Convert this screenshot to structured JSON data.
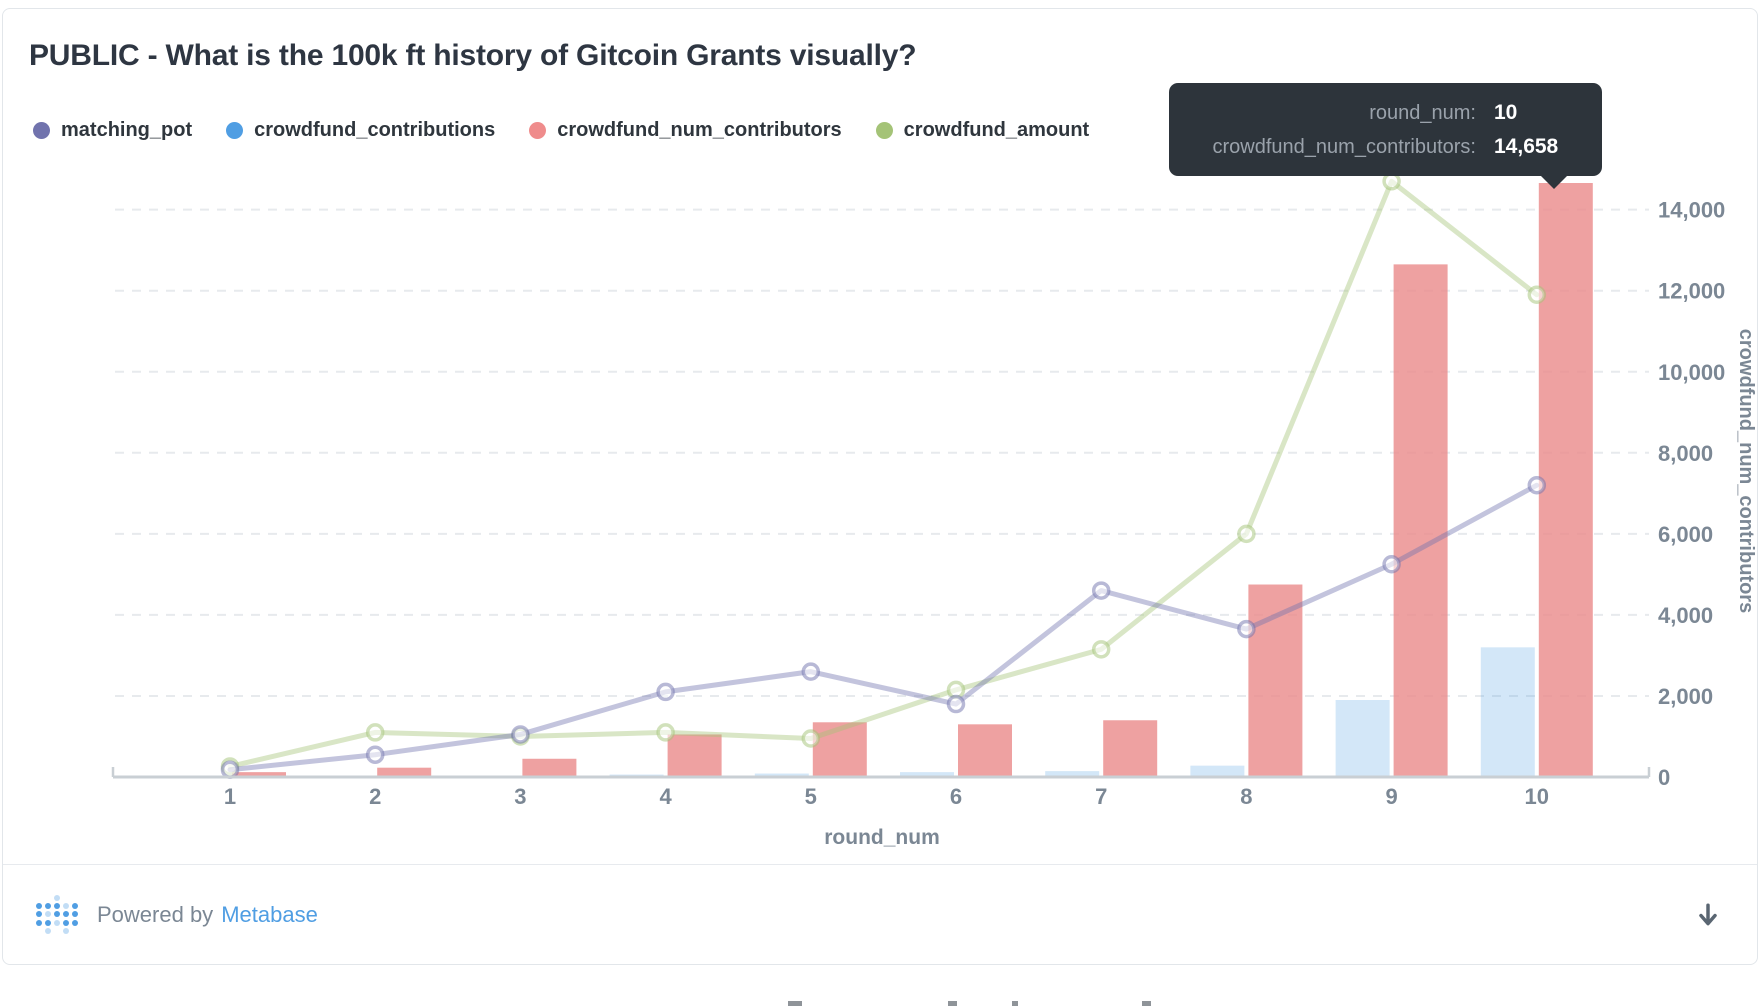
{
  "card": {
    "title": "PUBLIC - What is the 100k ft history of Gitcoin Grants visually?"
  },
  "legend": [
    {
      "label": "matching_pot",
      "color": "#7173ad"
    },
    {
      "label": "crowdfund_contributions",
      "color": "#509ee3"
    },
    {
      "label": "crowdfund_num_contributors",
      "color": "#ef8c8c"
    },
    {
      "label": "crowdfund_amount",
      "color": "#a4c377"
    }
  ],
  "tooltip": {
    "rows": [
      {
        "label": "round_num:",
        "value": "10"
      },
      {
        "label": "crowdfund_num_contributors:",
        "value": "14,658"
      }
    ]
  },
  "chart_data": {
    "type": "combo",
    "x": [
      1,
      2,
      3,
      4,
      5,
      6,
      7,
      8,
      9,
      10
    ],
    "xlabel": "round_num",
    "ylabel": "crowdfund_num_contributors",
    "ylim": [
      0,
      14800
    ],
    "y_ticks": [
      0,
      2000,
      4000,
      6000,
      8000,
      10000,
      12000,
      14000
    ],
    "grid": "dashed-horizontal",
    "legend_position": "top",
    "series": [
      {
        "name": "matching_pot",
        "type": "line",
        "color": "#7173ad",
        "values": [
          180,
          550,
          1050,
          2100,
          2600,
          1800,
          4600,
          3650,
          5250,
          7200
        ]
      },
      {
        "name": "crowdfund_contributions",
        "type": "bar",
        "color": "#509ee3",
        "values": [
          10,
          20,
          35,
          60,
          85,
          120,
          145,
          280,
          1900,
          3200
        ]
      },
      {
        "name": "crowdfund_num_contributors",
        "type": "bar",
        "color": "#ea8c8c",
        "values": [
          120,
          230,
          450,
          1050,
          1350,
          1300,
          1400,
          4750,
          12650,
          14658
        ]
      },
      {
        "name": "crowdfund_amount",
        "type": "line",
        "color": "#a4c377",
        "values": [
          260,
          1100,
          1000,
          1100,
          950,
          2150,
          3150,
          6000,
          14700,
          11900
        ]
      }
    ],
    "highlighted_point": {
      "series": "crowdfund_num_contributors",
      "x": 10,
      "value": 14658
    }
  },
  "footer": {
    "powered_by": "Powered by",
    "brand": "Metabase",
    "download_icon": "down-arrow"
  },
  "colors": {
    "axis_text": "#7b8794",
    "gridline": "#e7eaed",
    "axis_line": "#c9cfd4",
    "tooltip_bg": "#2d343b"
  }
}
